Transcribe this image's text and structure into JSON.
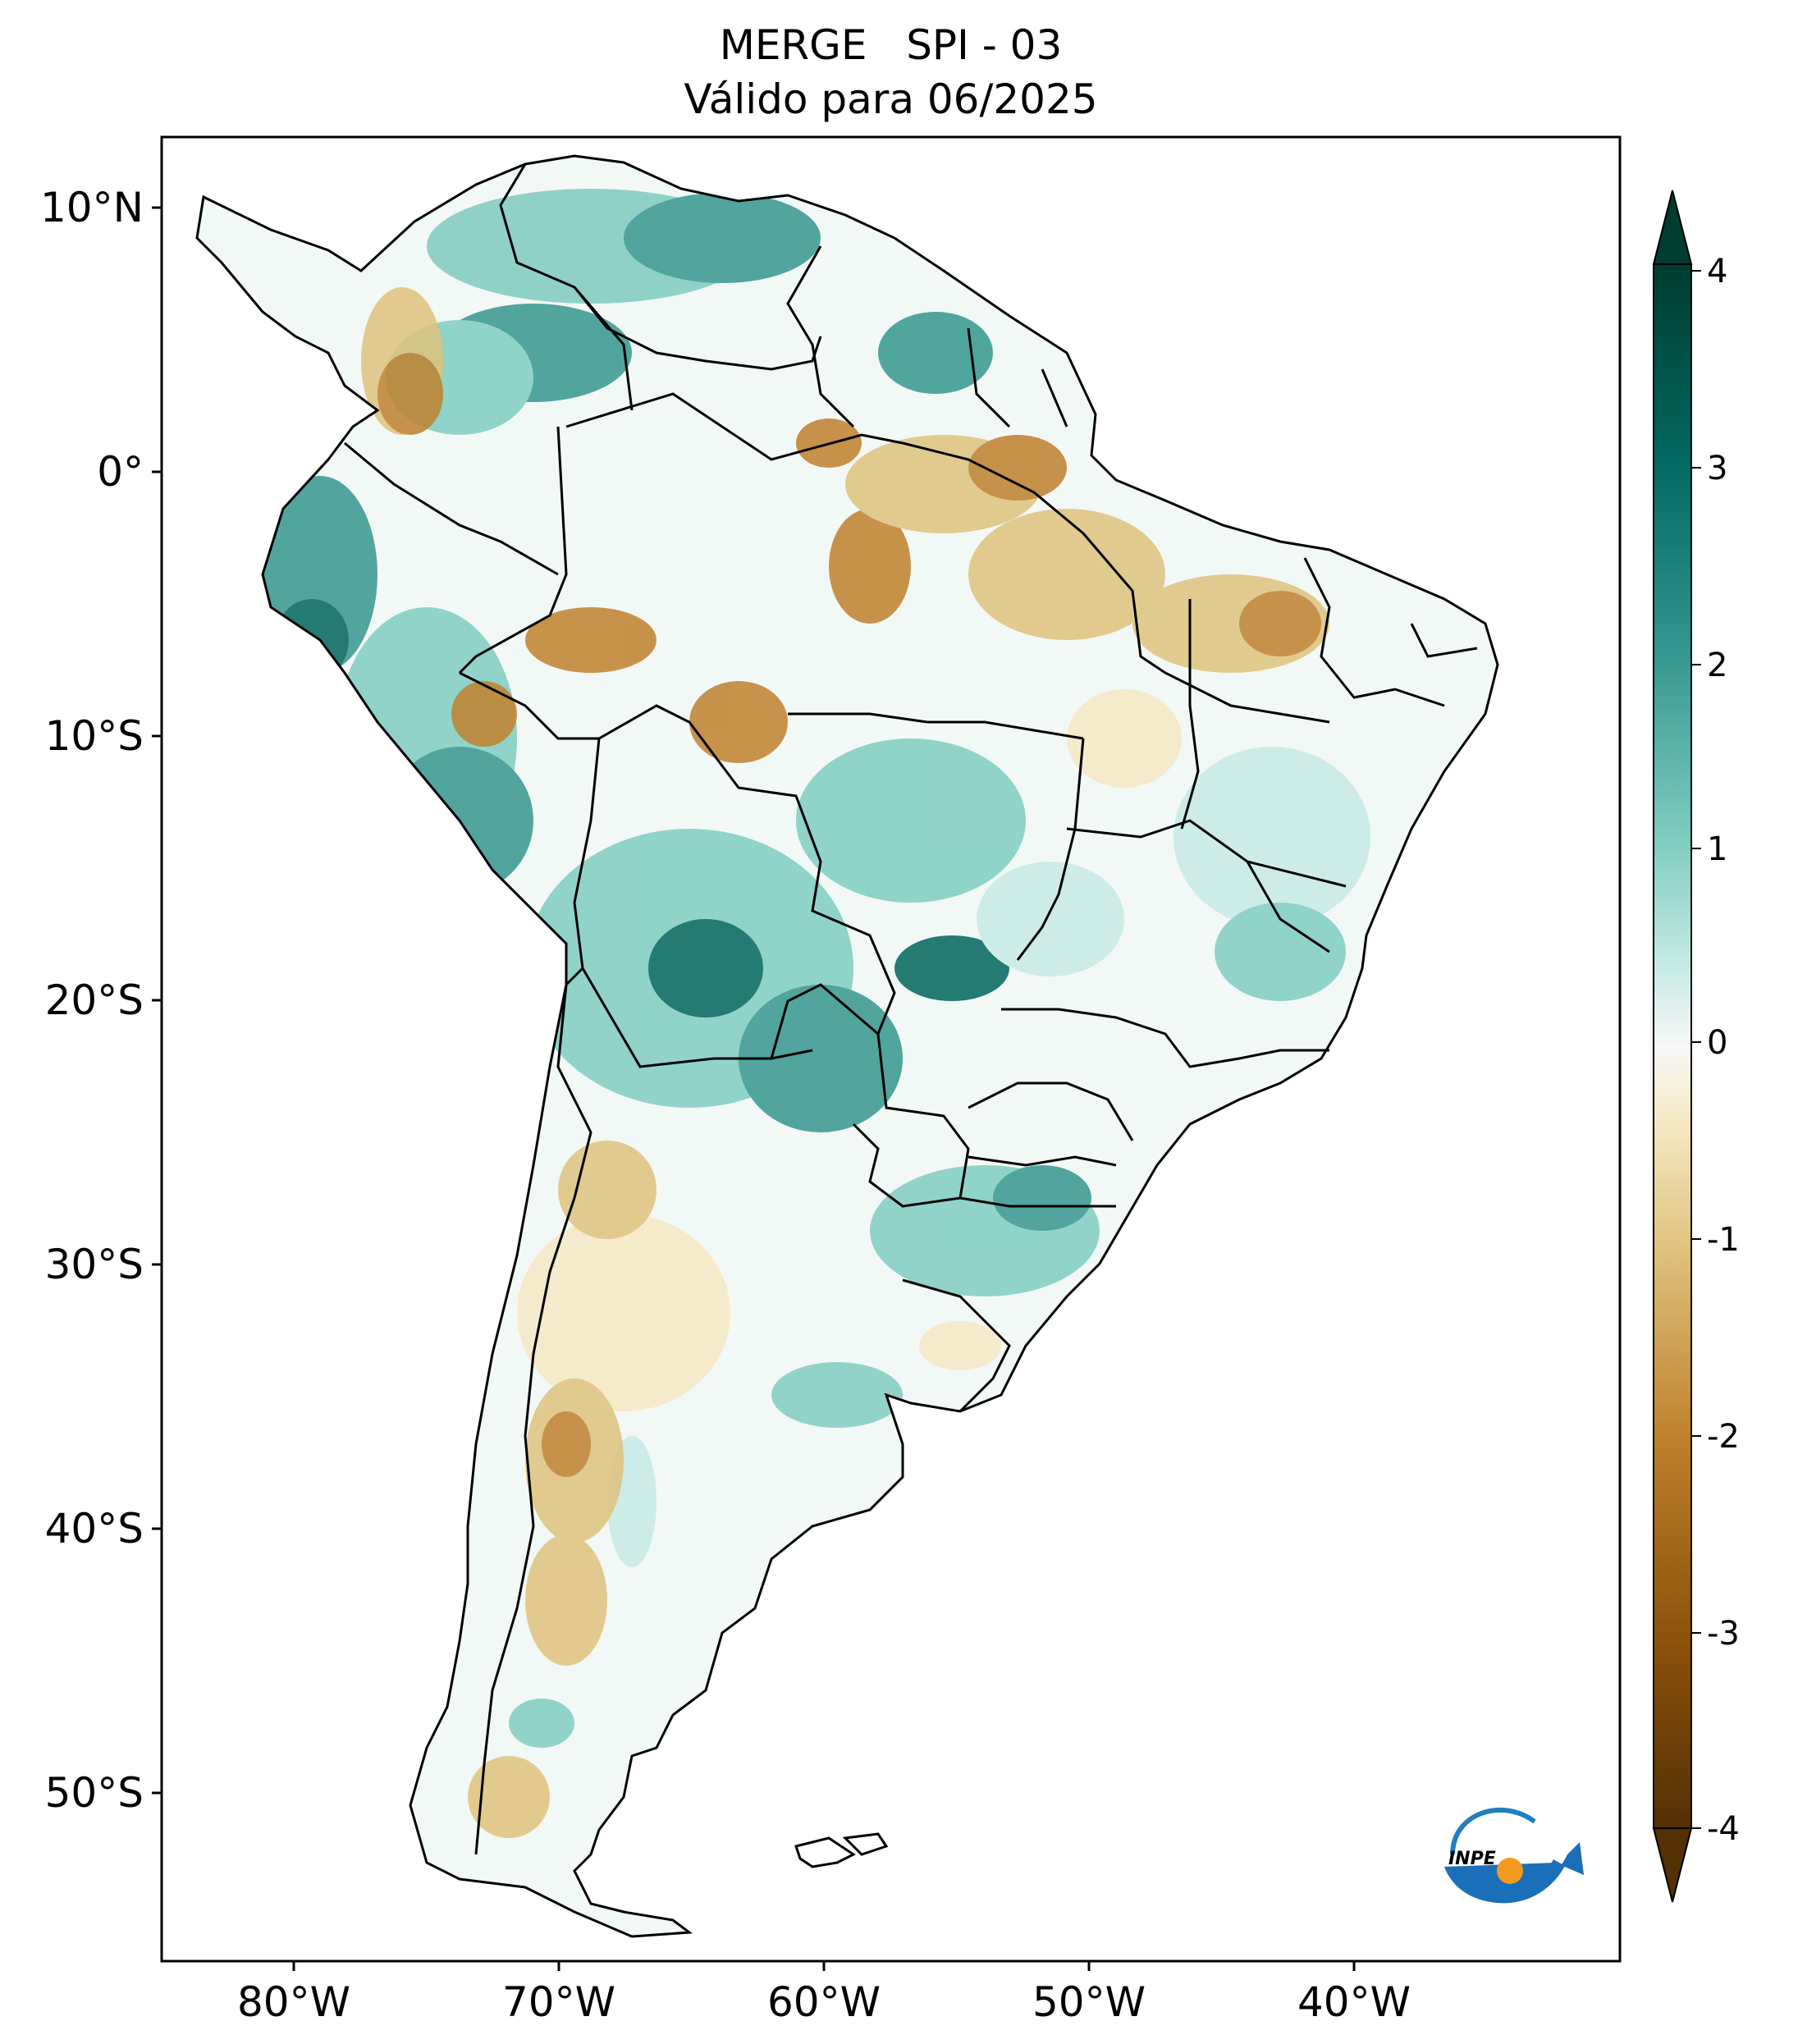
{
  "title": {
    "line1": "MERGE   SPI - 03",
    "line2": "Válido para 06/2025"
  },
  "map": {
    "lat_ticks": [
      "10°N",
      "0°",
      "10°S",
      "20°S",
      "30°S",
      "40°S",
      "50°S"
    ],
    "lon_ticks": [
      "80°W",
      "70°W",
      "60°W",
      "50°W",
      "40°W"
    ],
    "extent": {
      "lon": [
        -85,
        -30
      ],
      "lat": [
        -56,
        13
      ]
    }
  },
  "colorbar": {
    "ticks": [
      "4",
      "3",
      "2",
      "1",
      "0",
      "-1",
      "-2",
      "-3",
      "-4"
    ],
    "colors": {
      "wet_extreme": "#003c30",
      "wet_strong": "#01665e",
      "wet_moderate": "#35978f",
      "wet_light": "#80cdc1",
      "wet_faint": "#c7eae5",
      "neutral": "#f5f5f5",
      "dry_faint": "#f6e8c3",
      "dry_light": "#dfc27d",
      "dry_moderate": "#bf812d",
      "dry_strong": "#8c510a",
      "dry_extreme": "#543005"
    }
  },
  "logo": {
    "text": "INPE"
  }
}
